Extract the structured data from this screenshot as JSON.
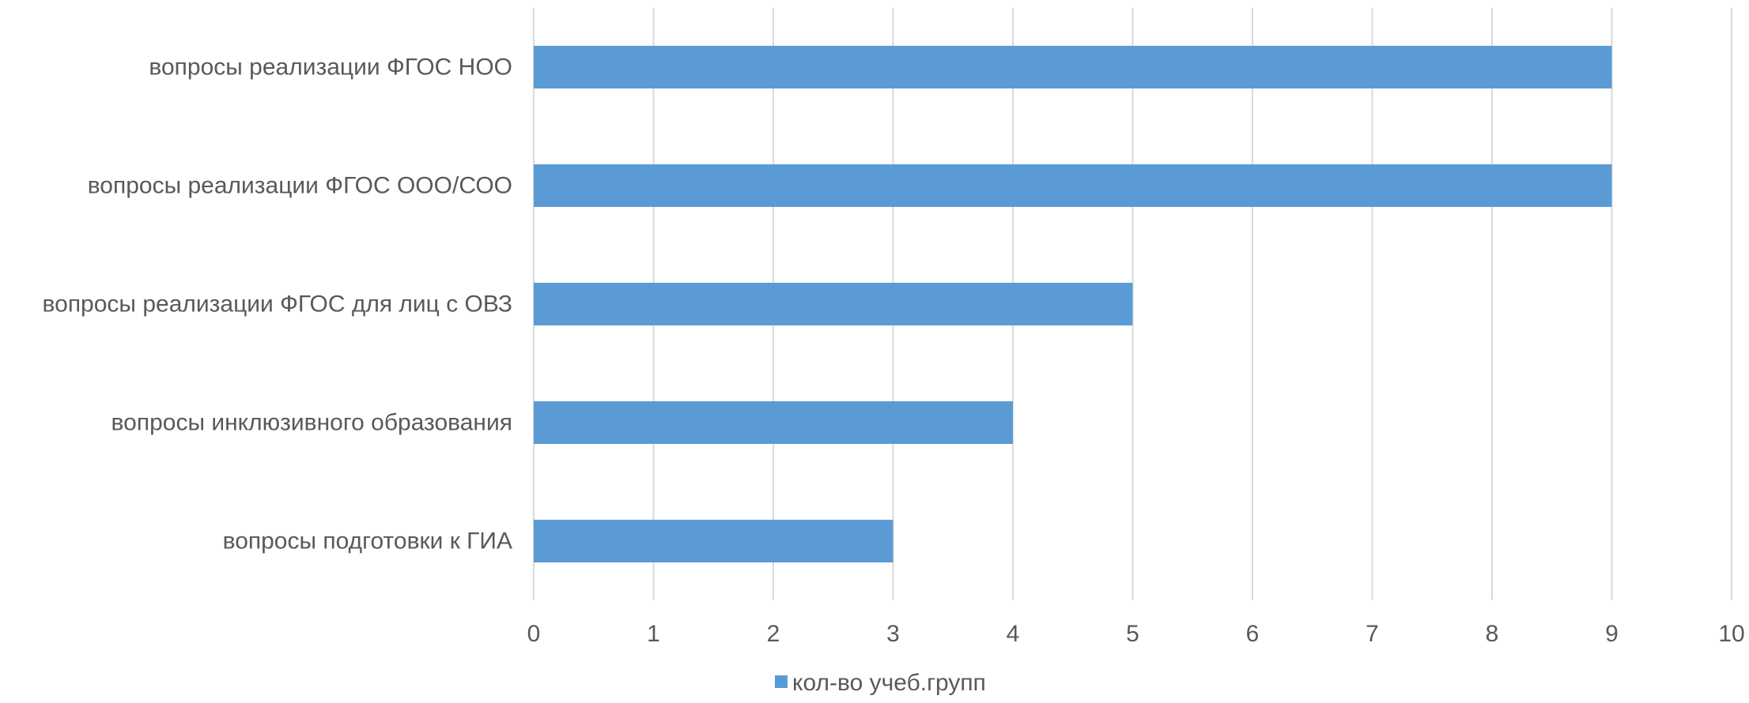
{
  "chart_data": {
    "type": "bar",
    "orientation": "horizontal",
    "categories": [
      "вопросы реализации ФГОС НОО",
      "вопросы реализации ФГОС ООО/СОО",
      "вопросы реализации ФГОС для лиц с ОВЗ",
      "вопросы инклюзивного образования",
      "вопросы подготовки к ГИА"
    ],
    "series": [
      {
        "name": "кол-во учеб.групп",
        "values": [
          9,
          9,
          5,
          4,
          3
        ],
        "color": "#5B9BD5"
      }
    ],
    "xlim": [
      0,
      10
    ],
    "xticks": [
      "0",
      "1",
      "2",
      "3",
      "4",
      "5",
      "6",
      "7",
      "8",
      "9",
      "10"
    ],
    "grid": true,
    "legend_position": "bottom"
  },
  "colors": {
    "bar": "#5B9BD5",
    "grid": "#D9D9D9",
    "text": "#595959"
  }
}
